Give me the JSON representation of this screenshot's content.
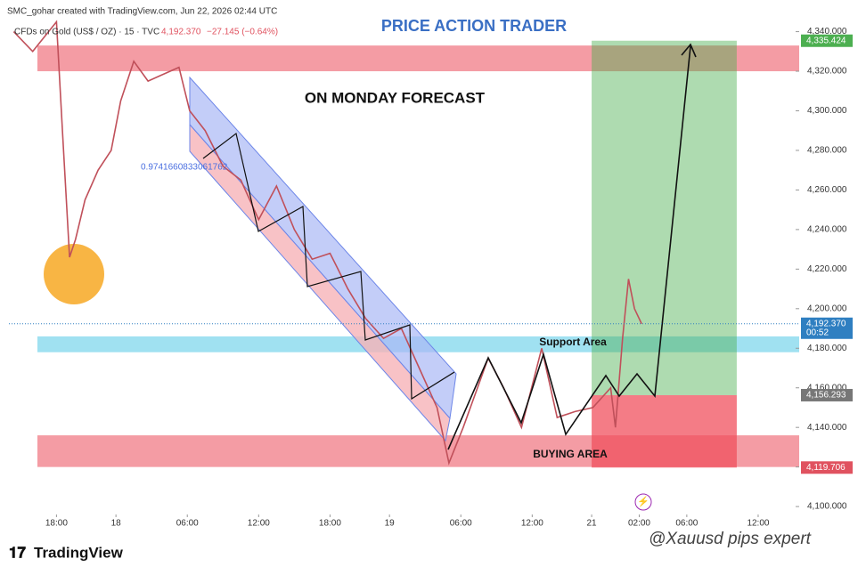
{
  "chart_data": {
    "type": "line",
    "header": "SMC_gohar created with TradingView.com, Jun 22, 2026 02:44 UTC",
    "symbol": "CFDs on Gold (US$ / OZ) · 15 · TVC",
    "last": "4,192.370",
    "change": "−27.145 (−0.64%)",
    "title": "PRICE ACTION TRADER",
    "subtitle": "ON MONDAY FORECAST",
    "channel_label": "0.9741660833061762",
    "brand": "TradingView",
    "watermark": "@Xauusd pips expert",
    "series": [
      {
        "name": "XAUUSD",
        "color": "#c0505a",
        "x": [
          -3.6,
          -2,
          0,
          0.5,
          1.1,
          1.6,
          2.4,
          3.5,
          4.6,
          5.4,
          6.5,
          7.7,
          8.8,
          10.3,
          11.2,
          12.5,
          14,
          15.5,
          17,
          18.5,
          20,
          21.5,
          23,
          24.5,
          26,
          27.5,
          29,
          30.5,
          32,
          33,
          34.2,
          35.4,
          36.3,
          37.6,
          39.1,
          40.8,
          42.1,
          43.6,
          45.1,
          46.6,
          47,
          47.6,
          48.1,
          48.6,
          49.2
        ],
        "values": [
          4340,
          4330,
          4345,
          4290,
          4226,
          4235,
          4255,
          4270,
          4280,
          4305,
          4325,
          4315,
          4318,
          4322,
          4300,
          4290,
          4272,
          4265,
          4245,
          4262,
          4240,
          4225,
          4228,
          4210,
          4195,
          4185,
          4190,
          4170,
          4150,
          4122,
          4140,
          4160,
          4175,
          4160,
          4140,
          4180,
          4145,
          4148,
          4150,
          4160,
          4140,
          4185,
          4215,
          4200,
          4192.37
        ]
      }
    ],
    "xlim": [
      -4,
      62
    ],
    "xticks": [
      {
        "value": 0,
        "label": "18:00"
      },
      {
        "value": 5,
        "label": "18"
      },
      {
        "value": 11,
        "label": "06:00"
      },
      {
        "value": 17,
        "label": "12:00"
      },
      {
        "value": 23,
        "label": "18:00"
      },
      {
        "value": 28,
        "label": "19"
      },
      {
        "value": 34,
        "label": "06:00"
      },
      {
        "value": 40,
        "label": "12:00"
      },
      {
        "value": 45,
        "label": "21"
      },
      {
        "value": 49,
        "label": "02:00"
      },
      {
        "value": 53,
        "label": "06:00"
      },
      {
        "value": 59,
        "label": "12:00"
      }
    ],
    "ylim": [
      4096,
      4356
    ],
    "yticks": [
      {
        "value": 4100,
        "label": "4,100.000"
      },
      {
        "value": 4120,
        "label": "4,120.000"
      },
      {
        "value": 4140,
        "label": "4,140.000"
      },
      {
        "value": 4160,
        "label": "4,160.000"
      },
      {
        "value": 4180,
        "label": "4,180.000"
      },
      {
        "value": 4200,
        "label": "4,200.000"
      },
      {
        "value": 4220,
        "label": "4,220.000"
      },
      {
        "value": 4240,
        "label": "4,240.000"
      },
      {
        "value": 4260,
        "label": "4,260.000"
      },
      {
        "value": 4280,
        "label": "4,280.000"
      },
      {
        "value": 4300,
        "label": "4,300.000"
      },
      {
        "value": 4320,
        "label": "4,320.000"
      },
      {
        "value": 4340,
        "label": "4,340.000"
      }
    ],
    "zones": [
      {
        "from": 4320,
        "to": 4333,
        "color": "#f28b94"
      },
      {
        "label": "Support Area",
        "from": 4178,
        "to": 4186,
        "color": "#8fdcee"
      },
      {
        "label": "BUYING AREA",
        "from": 4120,
        "to": 4136,
        "color": "#f28b94"
      }
    ],
    "position": {
      "x": [
        45,
        57.2
      ],
      "target": 4335.424,
      "entry": 4156.293,
      "stop": 4119.706
    },
    "price_labels": [
      {
        "value": 4335.424,
        "label": "4,335.424",
        "color": "#4caf50"
      },
      {
        "value": 4192.37,
        "label": "4,192.370",
        "sub": "00:52",
        "color": "#2f7fc1"
      },
      {
        "value": 4156.293,
        "label": "4,156.293",
        "color": "#777777"
      },
      {
        "value": 4119.706,
        "label": "4,119.706",
        "color": "#e0525f"
      }
    ]
  }
}
